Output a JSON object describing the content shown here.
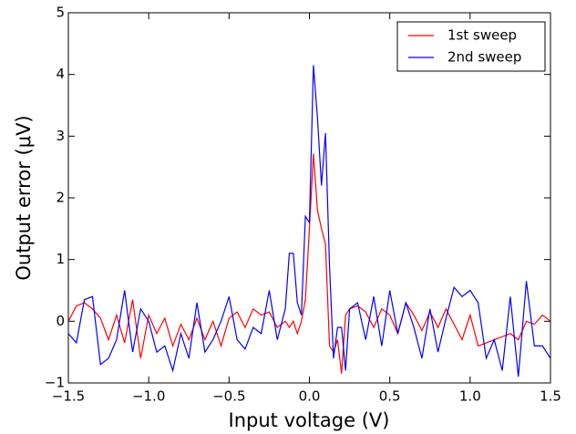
{
  "chart_data": {
    "type": "line",
    "x_label": "Input voltage (V)",
    "y_label": "Output error (μV)",
    "x": [
      -1.5,
      -1.45,
      -1.4,
      -1.35,
      -1.3,
      -1.25,
      -1.2,
      -1.15,
      -1.1,
      -1.05,
      -1.0,
      -0.95,
      -0.9,
      -0.85,
      -0.8,
      -0.75,
      -0.7,
      -0.65,
      -0.6,
      -0.55,
      -0.5,
      -0.45,
      -0.4,
      -0.35,
      -0.3,
      -0.25,
      -0.2,
      -0.15,
      -0.125,
      -0.1,
      -0.075,
      -0.05,
      -0.025,
      0,
      0.025,
      0.05,
      0.075,
      0.1,
      0.125,
      0.15,
      0.175,
      0.2,
      0.225,
      0.25,
      0.3,
      0.35,
      0.4,
      0.45,
      0.5,
      0.55,
      0.6,
      0.65,
      0.7,
      0.75,
      0.8,
      0.85,
      0.9,
      0.95,
      1.0,
      1.05,
      1.1,
      1.15,
      1.2,
      1.25,
      1.3,
      1.35,
      1.4,
      1.45,
      1.5
    ],
    "series": [
      {
        "name": "1st sweep",
        "color": "#ff0000",
        "values": [
          0.0,
          0.25,
          0.3,
          0.2,
          0.05,
          -0.3,
          0.1,
          -0.35,
          0.35,
          -0.6,
          0.1,
          -0.2,
          0.05,
          -0.4,
          -0.05,
          -0.3,
          0.05,
          -0.3,
          0.0,
          -0.4,
          0.05,
          0.15,
          -0.1,
          0.2,
          0.1,
          0.15,
          -0.1,
          0.0,
          -0.1,
          0.0,
          -0.2,
          0.0,
          0.35,
          1.5,
          2.72,
          1.8,
          1.5,
          1.25,
          -0.4,
          -0.5,
          -0.3,
          -0.85,
          0.1,
          0.2,
          0.25,
          0.15,
          -0.1,
          0.2,
          0.1,
          -0.2,
          0.3,
          0.1,
          -0.15,
          0.15,
          -0.1,
          0.2,
          -0.05,
          -0.3,
          0.1,
          -0.4,
          -0.35,
          -0.3,
          -0.25,
          -0.2,
          -0.3,
          0.0,
          -0.05,
          0.1,
          0.0
        ]
      },
      {
        "name": "2nd sweep",
        "color": "#0000ff",
        "values": [
          -0.2,
          -0.35,
          0.35,
          0.4,
          -0.7,
          -0.6,
          -0.3,
          0.5,
          -0.5,
          0.2,
          0.0,
          -0.5,
          -0.4,
          -0.8,
          -0.2,
          -0.6,
          0.3,
          -0.5,
          -0.3,
          0.0,
          0.4,
          -0.3,
          -0.45,
          -0.1,
          -0.2,
          0.5,
          -0.3,
          0.2,
          1.1,
          1.1,
          0.3,
          0.1,
          1.7,
          1.6,
          4.15,
          3.3,
          2.2,
          3.05,
          0.9,
          -0.6,
          -0.1,
          -0.1,
          -0.8,
          0.2,
          0.3,
          -0.3,
          0.4,
          -0.4,
          0.5,
          -0.2,
          0.3,
          -0.1,
          -0.6,
          0.2,
          -0.5,
          0.05,
          0.55,
          0.4,
          0.5,
          0.3,
          -0.6,
          -0.3,
          -0.8,
          0.4,
          -0.9,
          0.65,
          -0.4,
          -0.4,
          -0.6
        ]
      }
    ],
    "xlim": [
      -1.5,
      1.5
    ],
    "xticks": [
      {
        "value": -1.5,
        "label": "−1.5"
      },
      {
        "value": -1.0,
        "label": "−1.0"
      },
      {
        "value": -0.5,
        "label": "−0.5"
      },
      {
        "value": 0,
        "label": "0.0"
      },
      {
        "value": 0.5,
        "label": "0.5"
      },
      {
        "value": 1.0,
        "label": "1.0"
      },
      {
        "value": 1.5,
        "label": "1.5"
      }
    ],
    "ylim": [
      -1,
      5
    ],
    "yticks": [
      {
        "value": -1,
        "label": "−1"
      },
      0,
      1,
      2,
      3,
      4,
      5
    ],
    "legend": "upper right"
  }
}
